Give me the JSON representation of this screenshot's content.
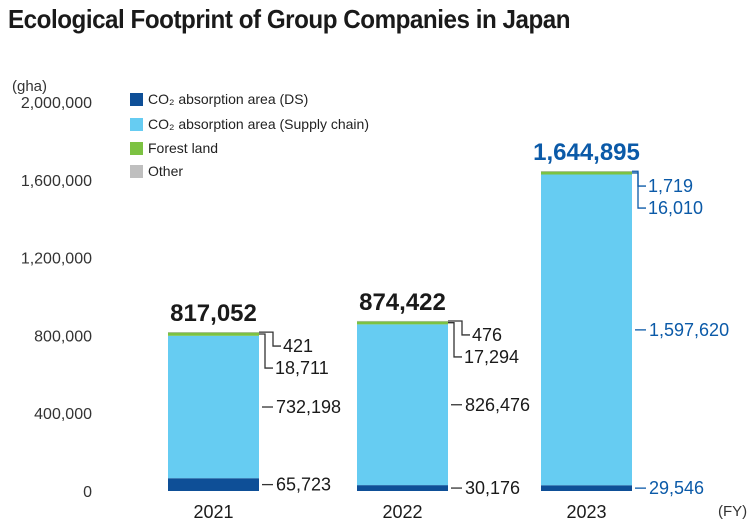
{
  "title": "Ecological Footprint of Group Companies in Japan",
  "colors": {
    "co2_ds": "#0e4f97",
    "co2_supply": "#66ccf2",
    "forest": "#7cc242",
    "other": "#bfbfbf",
    "text_dark": "#1a1a1a",
    "highlight": "#0b5aa8",
    "leader": "#333333"
  },
  "chart_data": {
    "type": "bar",
    "stacked": true,
    "title": "Ecological Footprint of Group Companies in Japan",
    "ylabel": "(gha)",
    "xlabel": "(FY)",
    "ylim": [
      0,
      2000000
    ],
    "yticks": [
      0,
      400000,
      800000,
      1200000,
      1600000,
      2000000
    ],
    "ytick_labels": [
      "0",
      "400,000",
      "800,000",
      "1,200,000",
      "1,600,000",
      "2,000,000"
    ],
    "categories": [
      "2021",
      "2022",
      "2023"
    ],
    "series": [
      {
        "name": "CO₂ absorption area (DS)",
        "values": [
          65723,
          30176,
          29546
        ],
        "labels": [
          "65,723",
          "30,176",
          "29,546"
        ]
      },
      {
        "name": "CO₂ absorption area (Supply chain)",
        "values": [
          732198,
          826476,
          1597620
        ],
        "labels": [
          "732,198",
          "826,476",
          "1,597,620"
        ]
      },
      {
        "name": "Forest land",
        "values": [
          18711,
          17294,
          16010
        ],
        "labels": [
          "18,711",
          "17,294",
          "16,010"
        ]
      },
      {
        "name": "Other",
        "values": [
          421,
          476,
          1719
        ],
        "labels": [
          "421",
          "476",
          "1,719"
        ]
      }
    ],
    "totals": [
      817052,
      874422,
      1644895
    ],
    "total_labels": [
      "817,052",
      "874,422",
      "1,644,895"
    ],
    "highlight_category": "2023",
    "grid": false,
    "legend_position": "top-left"
  }
}
